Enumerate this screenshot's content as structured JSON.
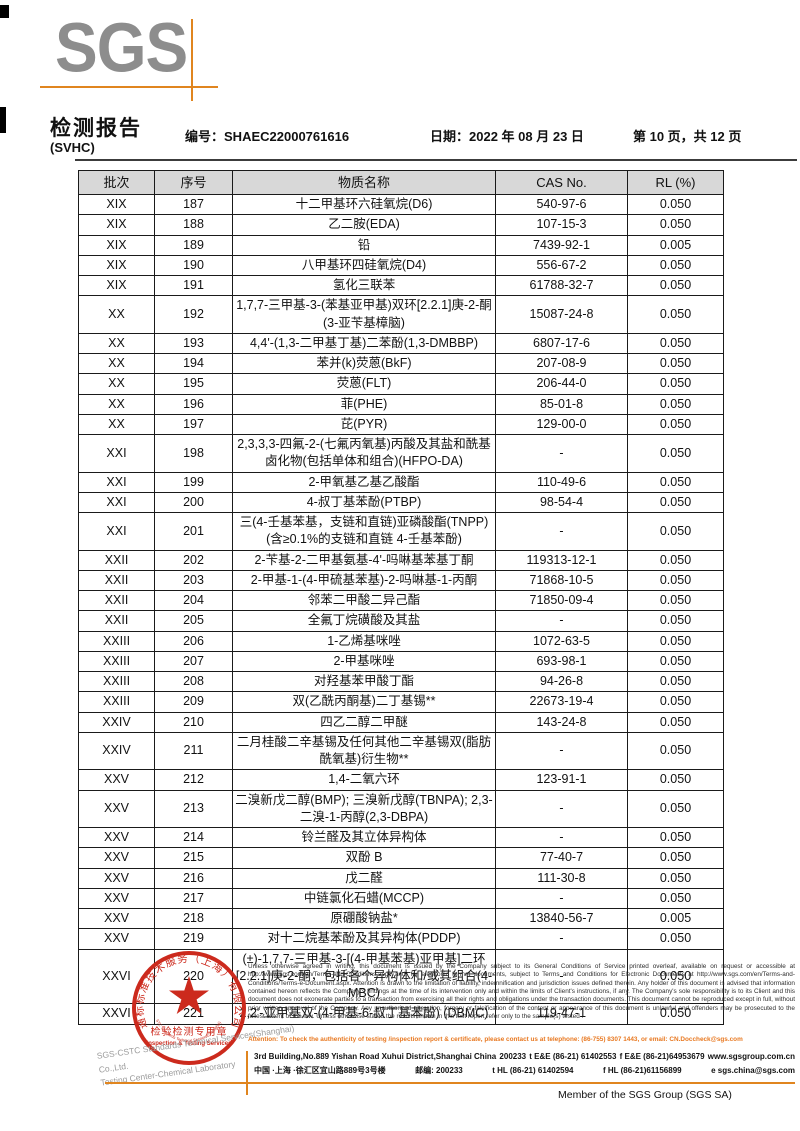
{
  "header": {
    "logo": "SGS",
    "title": "检测报告",
    "subtitle": "(SVHC)",
    "report_no_label": "编号：",
    "report_no": "SHAEC22000761616",
    "date_label": "日期：",
    "date": "2022 年 08 月 23 日",
    "page_info": "第 10 页，共 12 页"
  },
  "table": {
    "headers": [
      "批次",
      "序号",
      "物质名称",
      "CAS No.",
      "RL (%)"
    ],
    "rows": [
      [
        "XIX",
        "187",
        "十二甲基环六硅氧烷(D6)",
        "540-97-6",
        "0.050"
      ],
      [
        "XIX",
        "188",
        "乙二胺(EDA)",
        "107-15-3",
        "0.050"
      ],
      [
        "XIX",
        "189",
        "铅",
        "7439-92-1",
        "0.005"
      ],
      [
        "XIX",
        "190",
        "八甲基环四硅氧烷(D4)",
        "556-67-2",
        "0.050"
      ],
      [
        "XIX",
        "191",
        "氢化三联苯",
        "61788-32-7",
        "0.050"
      ],
      [
        "XX",
        "192",
        "1,7,7-三甲基-3-(苯基亚甲基)双环[2.2.1]庚-2-酮(3-亚苄基樟脑)",
        "15087-24-8",
        "0.050"
      ],
      [
        "XX",
        "193",
        "4,4'-(1,3-二甲基丁基)二苯酚(1,3-DMBBP)",
        "6807-17-6",
        "0.050"
      ],
      [
        "XX",
        "194",
        "苯并(k)荧蒽(BkF)",
        "207-08-9",
        "0.050"
      ],
      [
        "XX",
        "195",
        "荧蒽(FLT)",
        "206-44-0",
        "0.050"
      ],
      [
        "XX",
        "196",
        "菲(PHE)",
        "85-01-8",
        "0.050"
      ],
      [
        "XX",
        "197",
        "芘(PYR)",
        "129-00-0",
        "0.050"
      ],
      [
        "XXI",
        "198",
        "2,3,3,3-四氟-2-(七氟丙氧基)丙酸及其盐和酰基卤化物(包括单体和组合)(HFPO-DA)",
        "-",
        "0.050"
      ],
      [
        "XXI",
        "199",
        "2-甲氧基乙基乙酸酯",
        "110-49-6",
        "0.050"
      ],
      [
        "XXI",
        "200",
        "4-叔丁基苯酚(PTBP)",
        "98-54-4",
        "0.050"
      ],
      [
        "XXI",
        "201",
        "三(4-壬基苯基，支链和直链)亚磷酸酯(TNPP)(含≥0.1%的支链和直链 4-壬基苯酚)",
        "-",
        "0.050"
      ],
      [
        "XXII",
        "202",
        "2-苄基-2-二甲基氨基-4'-吗啉基苯基丁酮",
        "119313-12-1",
        "0.050"
      ],
      [
        "XXII",
        "203",
        "2-甲基-1-(4-甲硫基苯基)-2-吗啉基-1-丙酮",
        "71868-10-5",
        "0.050"
      ],
      [
        "XXII",
        "204",
        "邻苯二甲酸二异己酯",
        "71850-09-4",
        "0.050"
      ],
      [
        "XXII",
        "205",
        "全氟丁烷磺酸及其盐",
        "-",
        "0.050"
      ],
      [
        "XXIII",
        "206",
        "1-乙烯基咪唑",
        "1072-63-5",
        "0.050"
      ],
      [
        "XXIII",
        "207",
        "2-甲基咪唑",
        "693-98-1",
        "0.050"
      ],
      [
        "XXIII",
        "208",
        "对羟基苯甲酸丁酯",
        "94-26-8",
        "0.050"
      ],
      [
        "XXIII",
        "209",
        "双(乙酰丙酮基)二丁基锡**",
        "22673-19-4",
        "0.050"
      ],
      [
        "XXIV",
        "210",
        "四乙二醇二甲醚",
        "143-24-8",
        "0.050"
      ],
      [
        "XXIV",
        "211",
        "二月桂酸二辛基锡及任何其他二辛基锡双(脂肪酰氧基)衍生物**",
        "-",
        "0.050"
      ],
      [
        "XXV",
        "212",
        "1,4-二氧六环",
        "123-91-1",
        "0.050"
      ],
      [
        "XXV",
        "213",
        "二溴新戊二醇(BMP); 三溴新戊醇(TBNPA); 2,3-二溴-1-丙醇(2,3-DBPA)",
        "-",
        "0.050"
      ],
      [
        "XXV",
        "214",
        "铃兰醛及其立体异构体",
        "-",
        "0.050"
      ],
      [
        "XXV",
        "215",
        "双酚 B",
        "77-40-7",
        "0.050"
      ],
      [
        "XXV",
        "216",
        "戊二醛",
        "111-30-8",
        "0.050"
      ],
      [
        "XXV",
        "217",
        "中链氯化石蜡(MCCP)",
        "-",
        "0.050"
      ],
      [
        "XXV",
        "218",
        "原硼酸钠盐*",
        "13840-56-7",
        "0.005"
      ],
      [
        "XXV",
        "219",
        "对十二烷基苯酚及其异构体(PDDP)",
        "-",
        "0.050"
      ],
      [
        "XXVI",
        "220",
        "(±)-1,7,7-三甲基-3-[(4-甲基苯基)亚甲基]二环[2.2.1]庚-2-酮，包括各个异构体和/或其组合(4-MBC)",
        "-",
        "0.050"
      ],
      [
        "XXVI",
        "221",
        "2,2'-亚甲基双-(4-甲基-6-叔丁基苯酚) (DBMC)",
        "119-47-1",
        "0.050"
      ]
    ]
  },
  "footer": {
    "stamp": {
      "ring_text": "通标标准技术服务（上海）有限公司",
      "center_label": "检验检测专用章",
      "center_sublabel": "Inspection & Testing Services",
      "bottom_arc_text": "SGS-CSTC Standards Technical Services(Shanghai) Co.,Ltd."
    },
    "company_line1": "SGS-CSTC Standards Technical Services(Shanghai) Co.,Ltd.",
    "company_line2": "Testing Center-Chemical Laboratory",
    "disclaimer": "Unless otherwise agreed in writing, this document is issued by the Company subject to its General Conditions of Service printed overleaf, available on request or accessible at http://www.sgs.com/en/Terms-and-Conditions.aspx and, for electronic format documents, subject to Terms and Conditions for Electronic Documents at http://www.sgs.com/en/Terms-and-Conditions/Terms-e-Document.aspx. Attention is drawn to the limitation of liability, indemnification and jurisdiction issues defined therein. Any holder of this document is advised that information contained hereon reflects the Company's findings at the time of its intervention only and within the limits of Client's instructions, if any. The Company's sole responsibility is to its Client and this document does not exonerate parties to a transaction from exercising all their rights and obligations under the transaction documents. This document cannot be reproduced except in full, without prior written approval of the Company. Any unauthorized alteration, forgery or falsification of the content or appearance of this document is unlawful and offenders may be prosecuted to the fullest extent of the law. Unless otherwise stated the results shown in this test report refer only to the sample(s) tested .",
    "attention": "Attention: To check the authenticity of testing /inspection report & certificate, please contact us at telephone: (86-755) 8307 1443, or email: CN.Doccheck@sgs.com",
    "address": {
      "en_address": "3rd Building,No.889 Yishan Road Xuhui District,Shanghai China",
      "en_zip": "200233",
      "tel1": "t E&E (86-21) 61402553",
      "fax1": "f E&E (86-21)64953679",
      "web": "www.sgsgroup.com.cn",
      "cn_address": "中国 ·上海 ·徐汇区宜山路889号3号楼",
      "cn_zip_label": "邮编:",
      "cn_zip": "200233",
      "tel2": "t HL (86-21) 61402594",
      "fax2": "f HL (86-21)61156899",
      "email": "e  sgs.china@sgs.com"
    },
    "member": "Member of the SGS Group (SGS SA)"
  },
  "colors": {
    "accent_orange": "#e0851f",
    "stamp_red": "#cc2a1d",
    "logo_gray": "#8d8d8d",
    "table_header_bg": "#d8d8d8",
    "attention_orange": "#e87820"
  }
}
